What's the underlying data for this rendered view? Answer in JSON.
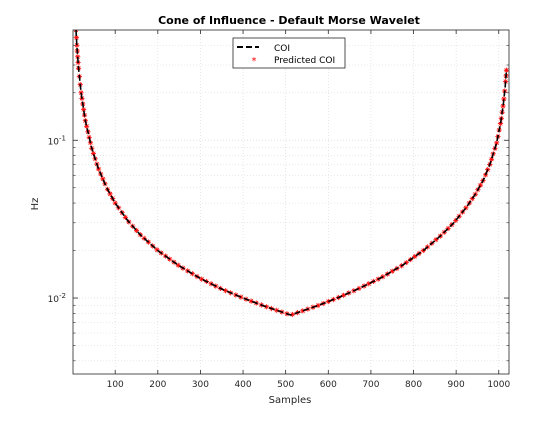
{
  "chart_data": {
    "type": "line",
    "title": "Cone of Influence - Default Morse Wavelet",
    "xlabel": "Samples",
    "ylabel": "Hz",
    "xlim": [
      1,
      1024
    ],
    "ylim": [
      0.0033,
      0.5
    ],
    "yscale": "log",
    "grid": true,
    "minor_grid": true,
    "legend_position": "top-center",
    "xticks": [
      100,
      200,
      300,
      400,
      500,
      600,
      700,
      800,
      900,
      1000
    ],
    "yticks": [
      {
        "value": 0.01,
        "base": "10",
        "exp": "-2"
      },
      {
        "value": 0.1,
        "base": "10",
        "exp": "-1"
      }
    ],
    "series": [
      {
        "name": "COI",
        "style": "dashed",
        "color": "#000000",
        "x": [
          8,
          10,
          14,
          20,
          30,
          45,
          60,
          80,
          100,
          130,
          160,
          200,
          250,
          300,
          350,
          400,
          450,
          500,
          512,
          525,
          575,
          625,
          675,
          725,
          775,
          825,
          865,
          895,
          925,
          945,
          965,
          980,
          995,
          1005,
          1011,
          1015,
          1018
        ],
        "y": [
          0.5,
          0.4,
          0.286,
          0.2,
          0.133,
          0.0889,
          0.0667,
          0.05,
          0.04,
          0.0308,
          0.025,
          0.02,
          0.016,
          0.0133,
          0.0114,
          0.01,
          0.00889,
          0.008,
          0.0078,
          0.00803,
          0.00895,
          0.0101,
          0.0116,
          0.0135,
          0.0162,
          0.0202,
          0.025,
          0.0301,
          0.0379,
          0.0455,
          0.0568,
          0.0714,
          0.0962,
          0.1316,
          0.1724,
          0.2174,
          0.2778
        ]
      },
      {
        "name": "Predicted COI",
        "style": "marker",
        "marker": "*",
        "color": "#ff0000"
      }
    ]
  },
  "colors": {
    "coi": "#000000",
    "predicted": "#ff0000",
    "grid": "#d6d6d6",
    "axis": "#262626"
  }
}
